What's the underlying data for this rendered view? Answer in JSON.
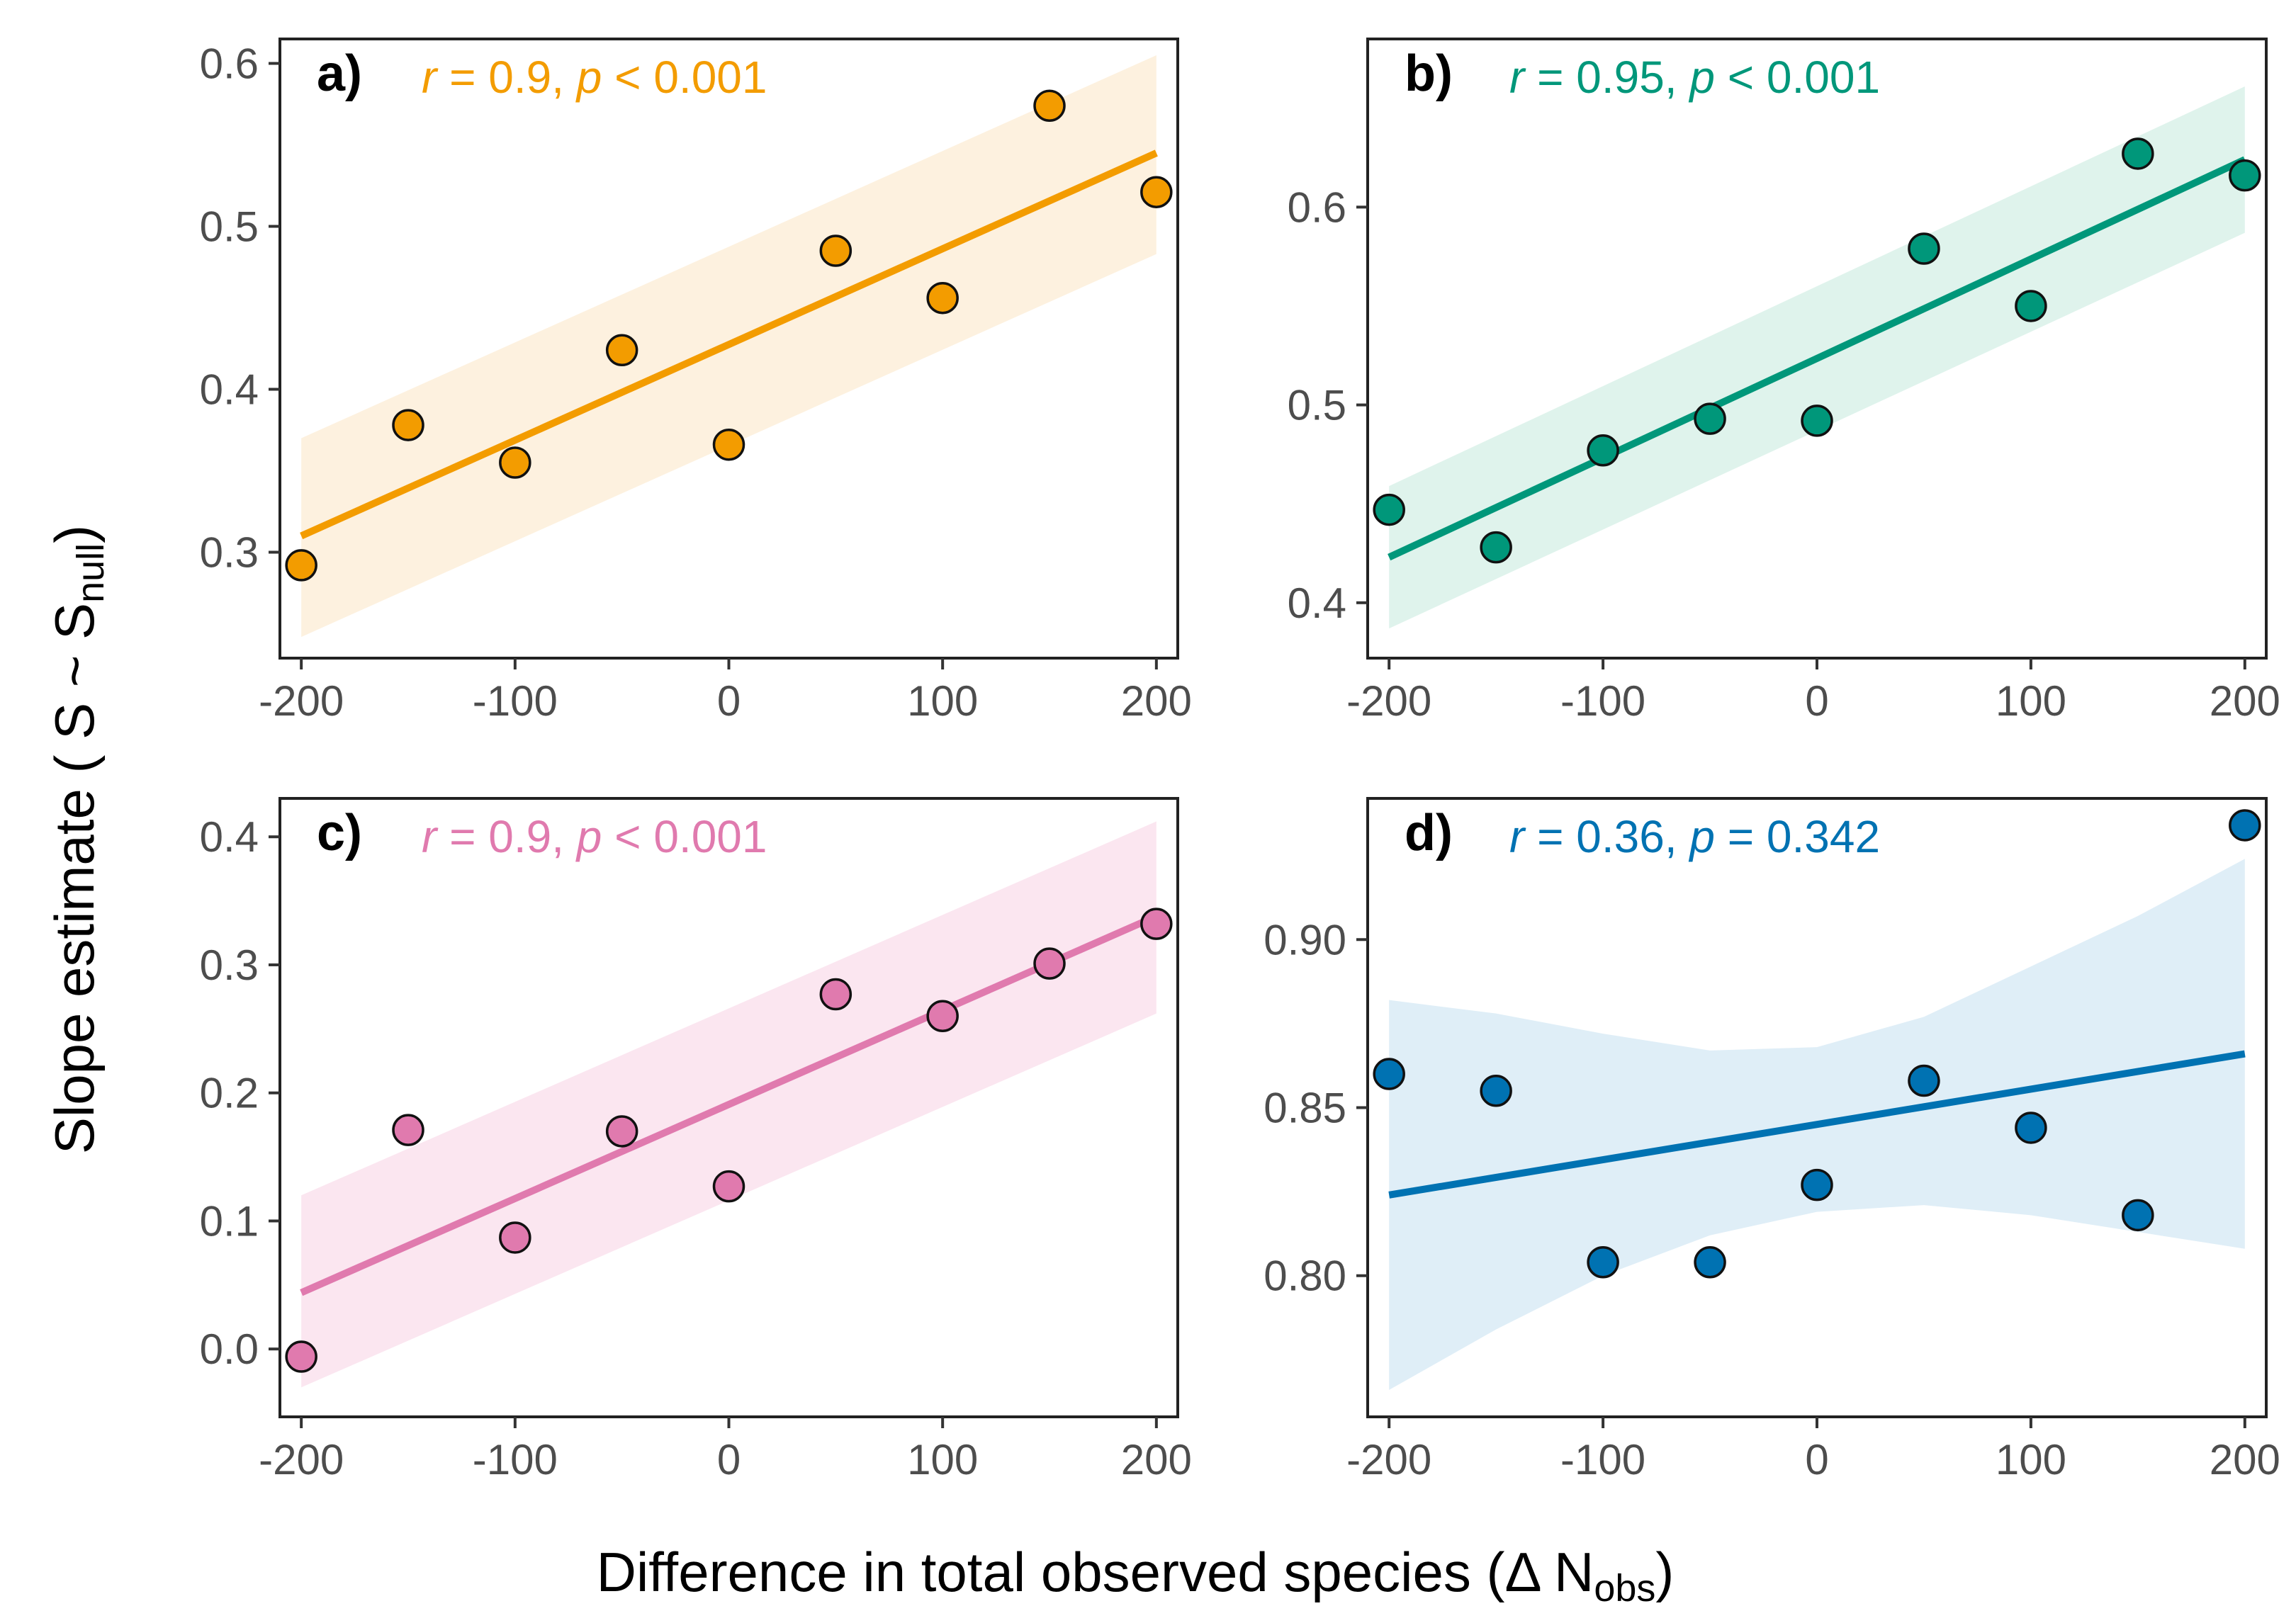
{
  "figure": {
    "ylabel_main": "Slope estimate ( S ~ S",
    "ylabel_sub": "null",
    "ylabel_end": ")",
    "xlabel_main": "Difference in total observed species (Δ N",
    "xlabel_sub": "obs",
    "xlabel_end": ")"
  },
  "chart_data": [
    {
      "type": "scatter",
      "panel": "a)",
      "stat": {
        "r_sym": "r",
        "r_val": " = 0.9, ",
        "p_sym": "p",
        "p_val": " < 0.001"
      },
      "color": "#F39C00",
      "fill": "#FDF1DF",
      "x": [
        -200,
        -150,
        -100,
        -50,
        0,
        50,
        100,
        150,
        200
      ],
      "y": [
        0.292,
        0.378,
        0.355,
        0.424,
        0.366,
        0.485,
        0.456,
        0.574,
        0.521
      ],
      "fit": [
        0.31,
        0.545
      ],
      "ci_low": [
        0.248,
        0.483
      ],
      "ci_high": [
        0.37,
        0.605
      ],
      "xlim": [
        -210,
        210
      ],
      "ylim": [
        0.235,
        0.615
      ],
      "xticks": [
        -200,
        -100,
        0,
        100,
        200
      ],
      "xtick_labels": [
        "-200",
        "-100",
        "0",
        "100",
        "200"
      ],
      "yticks": [
        0.3,
        0.4,
        0.5,
        0.6
      ],
      "ytick_labels": [
        "0.3",
        "0.4",
        "0.5",
        "0.6"
      ]
    },
    {
      "type": "scatter",
      "panel": "b)",
      "stat": {
        "r_sym": "r",
        "r_val": " = 0.95, ",
        "p_sym": "p",
        "p_val": " < 0.001"
      },
      "color": "#00977A",
      "fill": "#DFF3EC",
      "x": [
        -200,
        -150,
        -100,
        -50,
        0,
        50,
        100,
        150,
        200
      ],
      "y": [
        0.447,
        0.428,
        0.477,
        0.493,
        0.492,
        0.579,
        0.55,
        0.627,
        0.616
      ],
      "fit": [
        0.423,
        0.624
      ],
      "ci_low": [
        0.387,
        0.587
      ],
      "ci_high": [
        0.459,
        0.661
      ],
      "xlim": [
        -210,
        210
      ],
      "ylim": [
        0.372,
        0.685
      ],
      "xticks": [
        -200,
        -100,
        0,
        100,
        200
      ],
      "xtick_labels": [
        "-200",
        "-100",
        "0",
        "100",
        "200"
      ],
      "yticks": [
        0.4,
        0.5,
        0.6
      ],
      "ytick_labels": [
        "0.4",
        "0.5",
        "0.6"
      ]
    },
    {
      "type": "scatter",
      "panel": "c)",
      "stat": {
        "r_sym": "r",
        "r_val": " = 0.9, ",
        "p_sym": "p",
        "p_val": " < 0.001"
      },
      "color": "#E07AAE",
      "fill": "#FBE6F0",
      "x": [
        -200,
        -150,
        -100,
        -50,
        0,
        50,
        100,
        150,
        200
      ],
      "y": [
        -0.006,
        0.171,
        0.087,
        0.17,
        0.127,
        0.277,
        0.26,
        0.301,
        0.332
      ],
      "fit": [
        0.044,
        0.338
      ],
      "ci_low": [
        -0.03,
        0.262
      ],
      "ci_high": [
        0.12,
        0.412
      ],
      "xlim": [
        -210,
        210
      ],
      "ylim": [
        -0.053,
        0.43
      ],
      "xticks": [
        -200,
        -100,
        0,
        100,
        200
      ],
      "xtick_labels": [
        "-200",
        "-100",
        "0",
        "100",
        "200"
      ],
      "yticks": [
        0.0,
        0.1,
        0.2,
        0.3,
        0.4
      ],
      "ytick_labels": [
        "0.0",
        "0.1",
        "0.2",
        "0.3",
        "0.4"
      ]
    },
    {
      "type": "scatter",
      "panel": "d)",
      "stat": {
        "r_sym": "r",
        "r_val": " = 0.36, ",
        "p_sym": "p",
        "p_val": " = 0.342"
      },
      "color": "#0072B2",
      "fill": "#DFEEF7",
      "x": [
        -200,
        -150,
        -100,
        -50,
        0,
        50,
        100,
        150,
        200
      ],
      "y": [
        0.86,
        0.855,
        0.804,
        0.804,
        0.827,
        0.858,
        0.844,
        0.818,
        0.934
      ],
      "fit": [
        0.824,
        0.866
      ],
      "ci_band_x": [
        -200,
        -150,
        -100,
        -50,
        0,
        50,
        100,
        150,
        200
      ],
      "ci_band_low": [
        0.766,
        0.784,
        0.8,
        0.812,
        0.819,
        0.821,
        0.818,
        0.813,
        0.808
      ],
      "ci_band_high": [
        0.882,
        0.878,
        0.872,
        0.867,
        0.868,
        0.877,
        0.892,
        0.907,
        0.924
      ],
      "xlim": [
        -210,
        210
      ],
      "ylim": [
        0.758,
        0.942
      ],
      "xticks": [
        -200,
        -100,
        0,
        100,
        200
      ],
      "xtick_labels": [
        "-200",
        "-100",
        "0",
        "100",
        "200"
      ],
      "yticks": [
        0.8,
        0.85,
        0.9
      ],
      "ytick_labels": [
        "0.80",
        "0.85",
        "0.90"
      ]
    }
  ]
}
